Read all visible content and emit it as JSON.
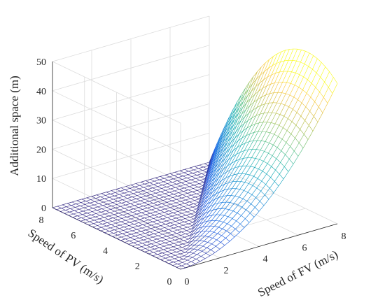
{
  "chart_data": {
    "type": "surface",
    "title": "",
    "xlabel": "Speed of FV (m/s)",
    "ylabel": "Speed of PV (m/s)",
    "zlabel": "Additional space (m)",
    "xlim": [
      0,
      8
    ],
    "ylim": [
      0,
      8
    ],
    "zlim": [
      0,
      50
    ],
    "x_ticks": [
      "0",
      "2",
      "4",
      "6",
      "8"
    ],
    "y_ticks": [
      "0",
      "2",
      "4",
      "6",
      "8"
    ],
    "z_ticks": [
      "0",
      "10",
      "20",
      "30",
      "40",
      "50"
    ],
    "colormap": "parula",
    "grid": true,
    "x_samples": [
      0,
      0.25,
      0.5,
      0.75,
      1,
      1.25,
      1.5,
      1.75,
      2,
      2.25,
      2.5,
      2.75,
      3,
      3.25,
      3.5,
      3.75,
      4,
      4.25,
      4.5,
      4.75,
      5,
      5.25,
      5.5,
      5.75,
      6,
      6.25,
      6.5,
      6.75,
      7,
      7.25,
      7.5,
      7.75,
      8
    ],
    "y_samples": [
      0,
      0.25,
      0.5,
      0.75,
      1,
      1.25,
      1.5,
      1.75,
      2,
      2.25,
      2.5,
      2.75,
      3,
      3.25,
      3.5,
      3.75,
      4,
      4.25,
      4.5,
      4.75,
      5,
      5.25,
      5.5,
      5.75,
      6,
      6.25,
      6.5,
      6.75,
      7,
      7.25,
      7.5,
      7.75,
      8
    ],
    "surface_description": "z is 0 where the FV speed does not exceed the PV speed and rises with the speed difference, reaching about 47 m at FV 8 m/s, PV 0 m/s",
    "z_model": {
      "a": 0.75,
      "b": 2.4,
      "k": 0.88
    }
  }
}
